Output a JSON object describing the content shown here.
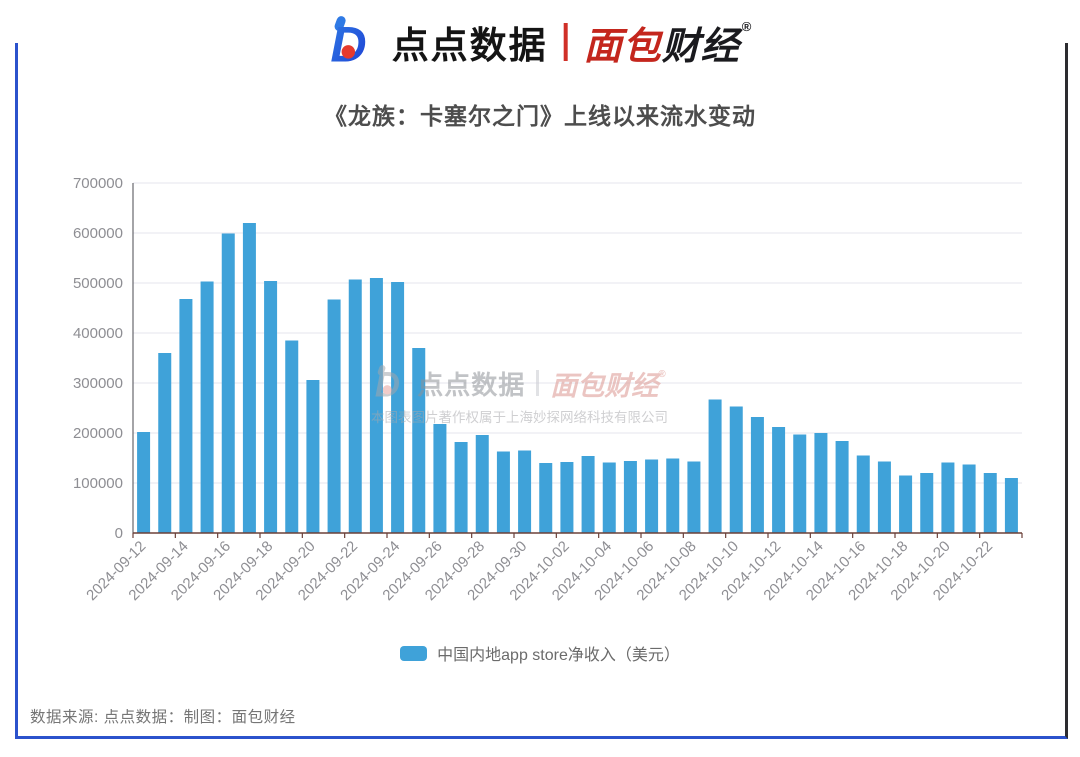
{
  "header": {
    "brand_left": "点点数据",
    "brand_right_part1": "面包",
    "brand_right_part2": "财经",
    "reg_mark": "®"
  },
  "chart_data": {
    "type": "bar",
    "title": "《龙族：卡塞尔之门》上线以来流水变动",
    "legend_label": "中国内地app store净收入（美元）",
    "legend_position": "bottom",
    "xlabel": "",
    "ylabel": "",
    "grid": true,
    "ylim": [
      0,
      700000
    ],
    "y_ticks": [
      0,
      100000,
      200000,
      300000,
      400000,
      500000,
      600000,
      700000
    ],
    "x_label_interval": 2,
    "bar_color": "#3fa2d9",
    "grid_color": "#e6e6ee",
    "axis_label_color": "#8e8e93",
    "x_axis_color": "#6b4038",
    "y_axis_color": "#67676d",
    "categories": [
      "2024-09-12",
      "2024-09-13",
      "2024-09-14",
      "2024-09-15",
      "2024-09-16",
      "2024-09-17",
      "2024-09-18",
      "2024-09-19",
      "2024-09-20",
      "2024-09-21",
      "2024-09-22",
      "2024-09-23",
      "2024-09-24",
      "2024-09-25",
      "2024-09-26",
      "2024-09-27",
      "2024-09-28",
      "2024-09-29",
      "2024-09-30",
      "2024-10-01",
      "2024-10-02",
      "2024-10-03",
      "2024-10-04",
      "2024-10-05",
      "2024-10-06",
      "2024-10-07",
      "2024-10-08",
      "2024-10-09",
      "2024-10-10",
      "2024-10-11",
      "2024-10-12",
      "2024-10-13",
      "2024-10-14",
      "2024-10-15",
      "2024-10-16",
      "2024-10-17",
      "2024-10-18",
      "2024-10-19",
      "2024-10-20",
      "2024-10-21",
      "2024-10-22",
      "2024-10-23"
    ],
    "values": [
      202000,
      360000,
      468000,
      503000,
      599000,
      620000,
      504000,
      385000,
      306000,
      467000,
      507000,
      510000,
      502000,
      370000,
      218000,
      182000,
      196000,
      163000,
      165000,
      140000,
      142000,
      154000,
      141000,
      144000,
      147000,
      149000,
      143000,
      267000,
      253000,
      232000,
      212000,
      197000,
      200000,
      184000,
      155000,
      143000,
      115000,
      120000,
      141000,
      137000,
      120000,
      110000
    ]
  },
  "watermark": {
    "brand_left": "点点数据",
    "brand_right_part1": "面包",
    "brand_right_part2": "财经",
    "reg_mark": "®",
    "copyright": "本图表图片著作权属于上海妙探网络科技有限公司"
  },
  "footer": {
    "source_text": "数据来源: 点点数据：制图：面包财经"
  },
  "colors": {
    "border_blue": "#2b52cc",
    "border_dark": "#2c2c30",
    "brand_blue": "#2f6bdb",
    "brand_red": "#c4261d",
    "bar_blue": "#3fa2d9"
  }
}
